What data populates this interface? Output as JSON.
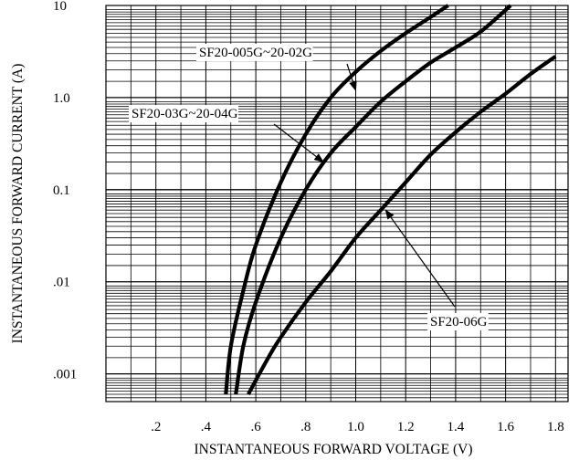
{
  "chart_data": {
    "type": "line",
    "title": "",
    "xlabel": "INSTANTANEOUS FORWARD VOLTAGE (V)",
    "ylabel": "INSTANTANEOUS FORWARD CURRENT (A)",
    "x_scale": "linear",
    "y_scale": "log",
    "xlim": [
      0.0,
      1.85
    ],
    "ylim": [
      0.0005,
      10
    ],
    "grid": true,
    "x_ticks": [
      {
        "value": 0.2,
        "label": ".2"
      },
      {
        "value": 0.4,
        "label": ".4"
      },
      {
        "value": 0.6,
        "label": ".6"
      },
      {
        "value": 0.8,
        "label": ".8"
      },
      {
        "value": 1.0,
        "label": "1.0"
      },
      {
        "value": 1.2,
        "label": "1.2"
      },
      {
        "value": 1.4,
        "label": "1.4"
      },
      {
        "value": 1.6,
        "label": "1.6"
      },
      {
        "value": 1.8,
        "label": "1.8"
      }
    ],
    "y_ticks": [
      {
        "value": 10,
        "label": "10"
      },
      {
        "value": 1.0,
        "label": "1.0"
      },
      {
        "value": 0.1,
        "label": "0.1"
      },
      {
        "value": 0.01,
        "label": ".01"
      },
      {
        "value": 0.001,
        "label": ".001"
      }
    ],
    "series": [
      {
        "name": "SF20-005G~20-02G",
        "annotation_point": [
          1.0,
          1.2
        ],
        "points": [
          [
            0.48,
            0.0006
          ],
          [
            0.5,
            0.002
          ],
          [
            0.55,
            0.008
          ],
          [
            0.6,
            0.025
          ],
          [
            0.7,
            0.12
          ],
          [
            0.8,
            0.4
          ],
          [
            0.9,
            1.0
          ],
          [
            1.0,
            1.9
          ],
          [
            1.1,
            3.2
          ],
          [
            1.2,
            5.0
          ],
          [
            1.3,
            7.5
          ],
          [
            1.37,
            10.0
          ]
        ]
      },
      {
        "name": "SF20-03G~20-04G",
        "annotation_point": [
          0.87,
          0.2
        ],
        "points": [
          [
            0.52,
            0.0006
          ],
          [
            0.55,
            0.002
          ],
          [
            0.6,
            0.006
          ],
          [
            0.7,
            0.03
          ],
          [
            0.8,
            0.1
          ],
          [
            0.9,
            0.25
          ],
          [
            1.0,
            0.48
          ],
          [
            1.1,
            0.9
          ],
          [
            1.2,
            1.5
          ],
          [
            1.3,
            2.4
          ],
          [
            1.4,
            3.5
          ],
          [
            1.5,
            5.2
          ],
          [
            1.62,
            10.0
          ]
        ]
      },
      {
        "name": "SF20-06G",
        "annotation_point": [
          1.12,
          0.06
        ],
        "points": [
          [
            0.57,
            0.0006
          ],
          [
            0.65,
            0.0015
          ],
          [
            0.7,
            0.0025
          ],
          [
            0.8,
            0.006
          ],
          [
            0.9,
            0.013
          ],
          [
            1.0,
            0.03
          ],
          [
            1.1,
            0.06
          ],
          [
            1.2,
            0.12
          ],
          [
            1.3,
            0.24
          ],
          [
            1.4,
            0.42
          ],
          [
            1.5,
            0.7
          ],
          [
            1.6,
            1.1
          ],
          [
            1.7,
            1.8
          ],
          [
            1.8,
            2.8
          ]
        ]
      }
    ]
  }
}
